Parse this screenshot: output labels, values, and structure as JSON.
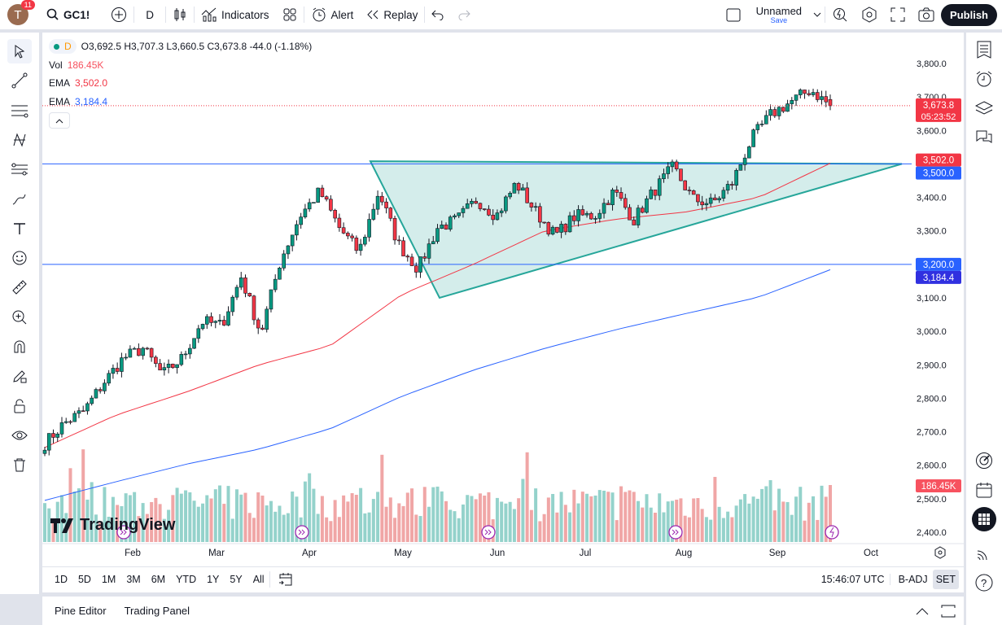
{
  "header": {
    "avatar_letter": "T",
    "notifications": "11",
    "symbol": "GC1!",
    "interval": "D",
    "indicators_label": "Indicators",
    "alert_label": "Alert",
    "replay_label": "Replay",
    "layout_name": "Unnamed",
    "layout_save": "Save",
    "publish_label": "Publish"
  },
  "legend": {
    "interval": "D",
    "ohlc": "O3,692.5 H3,707.3 L3,660.5 C3,673.8 -44.0 (-1.18%)",
    "vol_label": "Vol",
    "vol_value": "186.45K",
    "ema1_label": "EMA",
    "ema1_value": "3,502.0",
    "ema2_label": "EMA",
    "ema2_value": "3,184.4"
  },
  "colors": {
    "up": "#089981",
    "down": "#f23645",
    "ema_fast": "#f23645",
    "ema_slow": "#2962ff",
    "hline": "#2962ff",
    "triangle": "#26a69a"
  },
  "chart_data": {
    "type": "candlestick",
    "symbol": "GC1!",
    "price_ticks": [
      "3,800.0",
      "3,700.0",
      "3,600.0",
      "3,500.0",
      "3,400.0",
      "3,300.0",
      "3,200.0",
      "3,100.0",
      "3,000.0",
      "2,900.0",
      "2,800.0",
      "2,700.0",
      "2,600.0",
      "2,500.0",
      "2,400.0"
    ],
    "price_tick_values": [
      3800,
      3700,
      3600,
      3500,
      3400,
      3300,
      3200,
      3100,
      3000,
      2900,
      2800,
      2700,
      2600,
      2500,
      2400
    ],
    "hidden_ticks": [
      3500,
      3200
    ],
    "month_labels": [
      "Feb",
      "Mar",
      "Apr",
      "May",
      "Jun",
      "Jul",
      "Aug",
      "Sep",
      "Oct"
    ],
    "close_path": [
      2665,
      2726,
      2762,
      2847,
      2920,
      2949,
      2871,
      2920,
      3030,
      3017,
      3163,
      2993,
      3212,
      3345,
      3418,
      3309,
      3236,
      3418,
      3261,
      3187,
      3309,
      3333,
      3394,
      3345,
      3443,
      3357,
      3285,
      3345,
      3345,
      3418,
      3333,
      3418,
      3491,
      3394,
      3382,
      3443,
      3576,
      3649,
      3686,
      3722,
      3673.8
    ],
    "last_candle": {
      "open": 3692.5,
      "high": 3707.3,
      "low": 3660.5,
      "close": 3673.8,
      "change": -44.0,
      "change_pct": -1.18
    },
    "ema_fast_path": [
      2653,
      2750,
      2820,
      2900,
      2957,
      3110,
      3200,
      3300,
      3335,
      3357,
      3400,
      3502
    ],
    "ema_slow_path": [
      2495,
      2551,
      2604,
      2648,
      2709,
      2806,
      2884,
      2949,
      3005,
      3054,
      3102,
      3184
    ],
    "horizontal_lines": [
      3500,
      3200
    ],
    "triangle": {
      "top_left": 3508,
      "apex": 3100,
      "top_right": 3500
    },
    "labels": {
      "last_price": "3,673.8",
      "countdown": "05:23:52",
      "ema_fast": "3,502.0",
      "hline_top": "3,500.0",
      "hline_bottom": "3,200.0",
      "ema_slow": "3,184.4",
      "volume": "186.45K"
    },
    "volume_last": "186.45K"
  },
  "watermark": "TradingView",
  "range_buttons": [
    "1D",
    "5D",
    "1M",
    "3M",
    "6M",
    "YTD",
    "1Y",
    "5Y",
    "All"
  ],
  "status": {
    "time": "15:46:07 UTC",
    "adj": "B-ADJ",
    "session": "SET"
  },
  "bottom_tabs": [
    "Pine Editor",
    "Trading Panel"
  ]
}
